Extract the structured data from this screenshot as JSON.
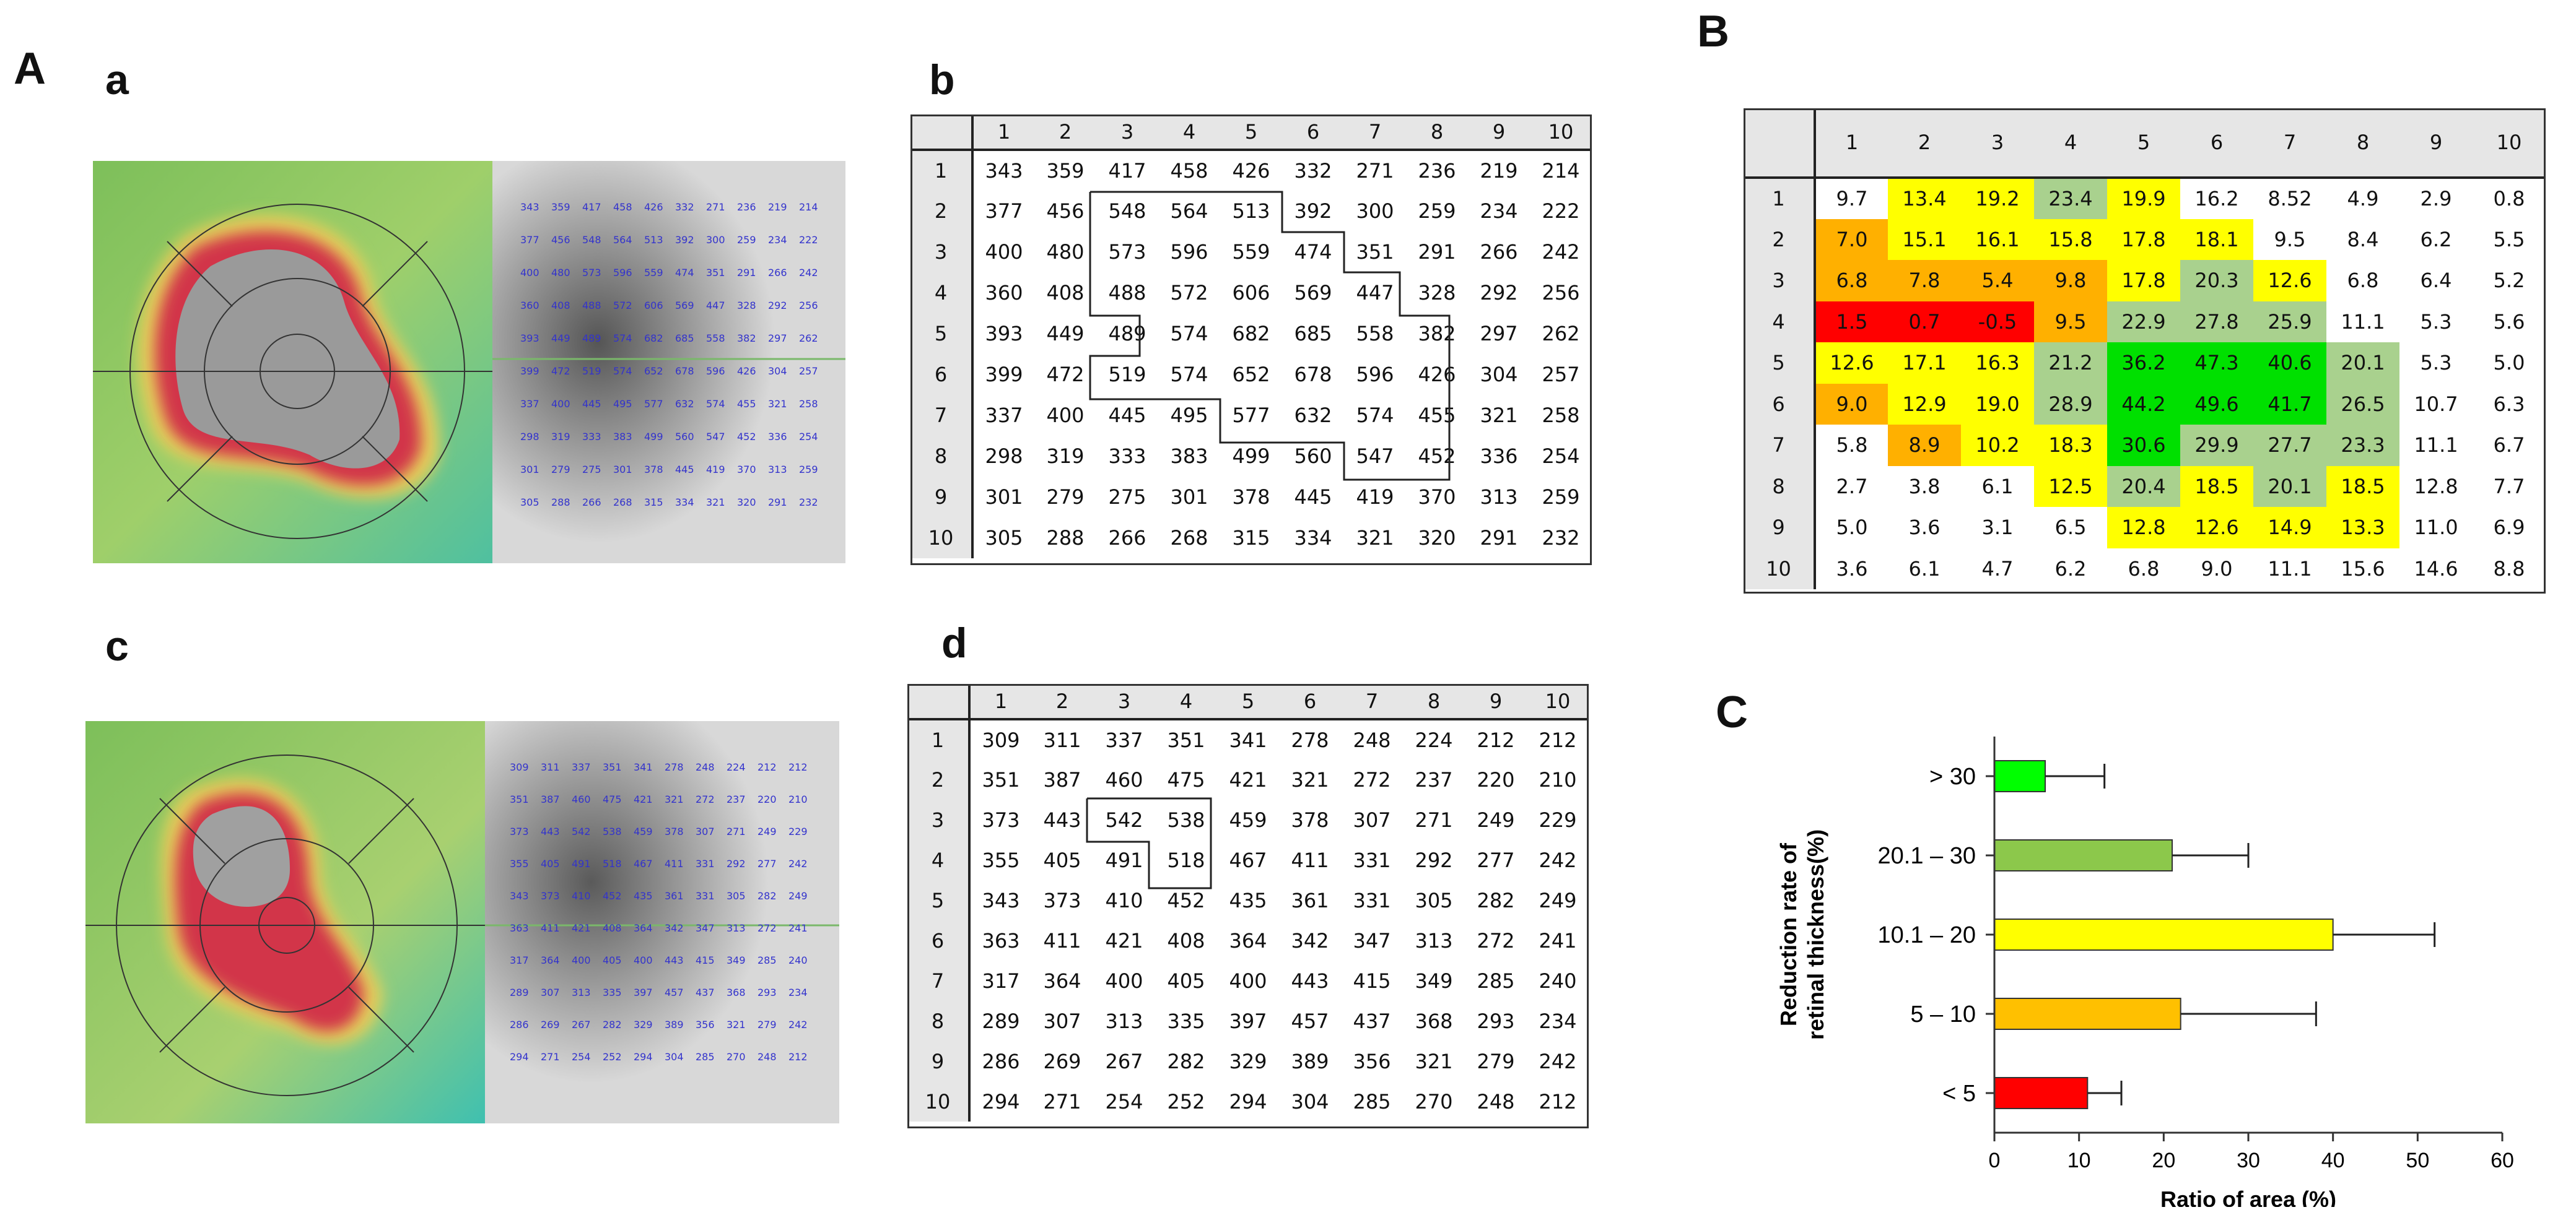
{
  "labels": {
    "A": "A",
    "B": "B",
    "C": "C",
    "a": "a",
    "b": "b",
    "c": "c",
    "d": "d"
  },
  "colors": {
    "red": "#ff0000",
    "orange": "#ffb000",
    "yellow": "#ffff00",
    "olive": "#a9d18e",
    "green": "#00e000",
    "white": "#ffffff",
    "header": "#e6e6e6"
  },
  "grid_overlay_a": [
    [
      343,
      359,
      417,
      458,
      426,
      332,
      271,
      236,
      219,
      214
    ],
    [
      377,
      456,
      548,
      564,
      513,
      392,
      300,
      259,
      234,
      222
    ],
    [
      400,
      480,
      573,
      596,
      559,
      474,
      351,
      291,
      266,
      242
    ],
    [
      360,
      408,
      488,
      572,
      606,
      569,
      447,
      328,
      292,
      256
    ],
    [
      393,
      449,
      489,
      574,
      682,
      685,
      558,
      382,
      297,
      262
    ],
    [
      399,
      472,
      519,
      574,
      652,
      678,
      596,
      426,
      304,
      257
    ],
    [
      337,
      400,
      445,
      495,
      577,
      632,
      574,
      455,
      321,
      258
    ],
    [
      298,
      319,
      333,
      383,
      499,
      560,
      547,
      452,
      336,
      254
    ],
    [
      301,
      279,
      275,
      301,
      378,
      445,
      419,
      370,
      313,
      259
    ],
    [
      305,
      288,
      266,
      268,
      315,
      334,
      321,
      320,
      291,
      232
    ]
  ],
  "grid_overlay_c": [
    [
      309,
      311,
      337,
      351,
      341,
      278,
      248,
      224,
      212,
      212
    ],
    [
      351,
      387,
      460,
      475,
      421,
      321,
      272,
      237,
      220,
      210
    ],
    [
      373,
      443,
      542,
      538,
      459,
      378,
      307,
      271,
      249,
      229
    ],
    [
      355,
      405,
      491,
      518,
      467,
      411,
      331,
      292,
      277,
      242
    ],
    [
      343,
      373,
      410,
      452,
      435,
      361,
      331,
      305,
      282,
      249
    ],
    [
      363,
      411,
      421,
      408,
      364,
      342,
      347,
      313,
      272,
      241
    ],
    [
      317,
      364,
      400,
      405,
      400,
      443,
      415,
      349,
      285,
      240
    ],
    [
      289,
      307,
      313,
      335,
      397,
      457,
      437,
      368,
      293,
      234
    ],
    [
      286,
      269,
      267,
      282,
      329,
      389,
      356,
      321,
      279,
      242
    ],
    [
      294,
      271,
      254,
      252,
      294,
      304,
      285,
      270,
      248,
      212
    ]
  ],
  "table_b": {
    "columns": [
      "1",
      "2",
      "3",
      "4",
      "5",
      "6",
      "7",
      "8",
      "9",
      "10"
    ],
    "rows": [
      {
        "label": "1",
        "cells": [
          "343",
          "359",
          "417",
          "458",
          "426",
          "332",
          "271",
          "236",
          "219",
          "214"
        ]
      },
      {
        "label": "2",
        "cells": [
          "377",
          "456",
          "548",
          "564",
          "513",
          "392",
          "300",
          "259",
          "234",
          "222"
        ]
      },
      {
        "label": "3",
        "cells": [
          "400",
          "480",
          "573",
          "596",
          "559",
          "474",
          "351",
          "291",
          "266",
          "242"
        ]
      },
      {
        "label": "4",
        "cells": [
          "360",
          "408",
          "488",
          "572",
          "606",
          "569",
          "447",
          "328",
          "292",
          "256"
        ]
      },
      {
        "label": "5",
        "cells": [
          "393",
          "449",
          "489",
          "574",
          "682",
          "685",
          "558",
          "382",
          "297",
          "262"
        ]
      },
      {
        "label": "6",
        "cells": [
          "399",
          "472",
          "519",
          "574",
          "652",
          "678",
          "596",
          "426",
          "304",
          "257"
        ]
      },
      {
        "label": "7",
        "cells": [
          "337",
          "400",
          "445",
          "495",
          "577",
          "632",
          "574",
          "455",
          "321",
          "258"
        ]
      },
      {
        "label": "8",
        "cells": [
          "298",
          "319",
          "333",
          "383",
          "499",
          "560",
          "547",
          "452",
          "336",
          "254"
        ]
      },
      {
        "label": "9",
        "cells": [
          "301",
          "279",
          "275",
          "301",
          "378",
          "445",
          "419",
          "370",
          "313",
          "259"
        ]
      },
      {
        "label": "10",
        "cells": [
          "305",
          "288",
          "266",
          "268",
          "315",
          "334",
          "321",
          "320",
          "291",
          "232"
        ]
      }
    ]
  },
  "table_d": {
    "columns": [
      "1",
      "2",
      "3",
      "4",
      "5",
      "6",
      "7",
      "8",
      "9",
      "10"
    ],
    "rows": [
      {
        "label": "1",
        "cells": [
          "309",
          "311",
          "337",
          "351",
          "341",
          "278",
          "248",
          "224",
          "212",
          "212"
        ]
      },
      {
        "label": "2",
        "cells": [
          "351",
          "387",
          "460",
          "475",
          "421",
          "321",
          "272",
          "237",
          "220",
          "210"
        ]
      },
      {
        "label": "3",
        "cells": [
          "373",
          "443",
          "542",
          "538",
          "459",
          "378",
          "307",
          "271",
          "249",
          "229"
        ]
      },
      {
        "label": "4",
        "cells": [
          "355",
          "405",
          "491",
          "518",
          "467",
          "411",
          "331",
          "292",
          "277",
          "242"
        ]
      },
      {
        "label": "5",
        "cells": [
          "343",
          "373",
          "410",
          "452",
          "435",
          "361",
          "331",
          "305",
          "282",
          "249"
        ]
      },
      {
        "label": "6",
        "cells": [
          "363",
          "411",
          "421",
          "408",
          "364",
          "342",
          "347",
          "313",
          "272",
          "241"
        ]
      },
      {
        "label": "7",
        "cells": [
          "317",
          "364",
          "400",
          "405",
          "400",
          "443",
          "415",
          "349",
          "285",
          "240"
        ]
      },
      {
        "label": "8",
        "cells": [
          "289",
          "307",
          "313",
          "335",
          "397",
          "457",
          "437",
          "368",
          "293",
          "234"
        ]
      },
      {
        "label": "9",
        "cells": [
          "286",
          "269",
          "267",
          "282",
          "329",
          "389",
          "356",
          "321",
          "279",
          "242"
        ]
      },
      {
        "label": "10",
        "cells": [
          "294",
          "271",
          "254",
          "252",
          "294",
          "304",
          "285",
          "270",
          "248",
          "212"
        ]
      }
    ]
  },
  "table_B": {
    "columns": [
      "1",
      "2",
      "3",
      "4",
      "5",
      "6",
      "7",
      "8",
      "9",
      "10"
    ],
    "rows": [
      {
        "label": "1",
        "cells": [
          "9.7",
          "13.4",
          "19.2",
          "23.4",
          "19.9",
          "16.2",
          "8.52",
          "4.9",
          "2.9",
          "0.8"
        ],
        "colors": [
          "white",
          "yellow",
          "yellow",
          "olive",
          "yellow",
          "white",
          "white",
          "white",
          "white",
          "white"
        ]
      },
      {
        "label": "2",
        "cells": [
          "7.0",
          "15.1",
          "16.1",
          "15.8",
          "17.8",
          "18.1",
          "9.5",
          "8.4",
          "6.2",
          "5.5"
        ],
        "colors": [
          "orange",
          "yellow",
          "yellow",
          "yellow",
          "yellow",
          "yellow",
          "white",
          "white",
          "white",
          "white"
        ]
      },
      {
        "label": "3",
        "cells": [
          "6.8",
          "7.8",
          "5.4",
          "9.8",
          "17.8",
          "20.3",
          "12.6",
          "6.8",
          "6.4",
          "5.2"
        ],
        "colors": [
          "orange",
          "orange",
          "orange",
          "orange",
          "yellow",
          "olive",
          "yellow",
          "white",
          "white",
          "white"
        ]
      },
      {
        "label": "4",
        "cells": [
          "1.5",
          "0.7",
          "-0.5",
          "9.5",
          "22.9",
          "27.8",
          "25.9",
          "11.1",
          "5.3",
          "5.6"
        ],
        "colors": [
          "red",
          "red",
          "red",
          "orange",
          "olive",
          "olive",
          "olive",
          "white",
          "white",
          "white"
        ]
      },
      {
        "label": "5",
        "cells": [
          "12.6",
          "17.1",
          "16.3",
          "21.2",
          "36.2",
          "47.3",
          "40.6",
          "20.1",
          "5.3",
          "5.0"
        ],
        "colors": [
          "yellow",
          "yellow",
          "yellow",
          "olive",
          "green",
          "green",
          "green",
          "olive",
          "white",
          "white"
        ]
      },
      {
        "label": "6",
        "cells": [
          "9.0",
          "12.9",
          "19.0",
          "28.9",
          "44.2",
          "49.6",
          "41.7",
          "26.5",
          "10.7",
          "6.3"
        ],
        "colors": [
          "orange",
          "yellow",
          "yellow",
          "olive",
          "green",
          "green",
          "green",
          "olive",
          "white",
          "white"
        ]
      },
      {
        "label": "7",
        "cells": [
          "5.8",
          "8.9",
          "10.2",
          "18.3",
          "30.6",
          "29.9",
          "27.7",
          "23.3",
          "11.1",
          "6.7"
        ],
        "colors": [
          "white",
          "orange",
          "yellow",
          "yellow",
          "green",
          "olive",
          "olive",
          "olive",
          "white",
          "white"
        ]
      },
      {
        "label": "8",
        "cells": [
          "2.7",
          "3.8",
          "6.1",
          "12.5",
          "20.4",
          "18.5",
          "20.1",
          "18.5",
          "12.8",
          "7.7"
        ],
        "colors": [
          "white",
          "white",
          "white",
          "yellow",
          "olive",
          "yellow",
          "olive",
          "yellow",
          "white",
          "white"
        ]
      },
      {
        "label": "9",
        "cells": [
          "5.0",
          "3.6",
          "3.1",
          "6.5",
          "12.8",
          "12.6",
          "14.9",
          "13.3",
          "11.0",
          "6.9"
        ],
        "colors": [
          "white",
          "white",
          "white",
          "white",
          "yellow",
          "yellow",
          "yellow",
          "yellow",
          "white",
          "white"
        ]
      },
      {
        "label": "10",
        "cells": [
          "3.6",
          "6.1",
          "4.7",
          "6.2",
          "6.8",
          "9.0",
          "11.1",
          "15.6",
          "14.6",
          "8.8"
        ],
        "colors": [
          "white",
          "white",
          "white",
          "white",
          "white",
          "white",
          "white",
          "white",
          "white",
          "white"
        ]
      }
    ]
  },
  "chart_data": {
    "type": "bar",
    "orientation": "horizontal",
    "title": "",
    "xlabel": "Ratio of area (%)",
    "ylabel": "Reduction rate of retinal thickness (%)",
    "ylabel_lines": [
      "Reduction rate of",
      "retinal thickness(%)"
    ],
    "categories": [
      "> 30",
      "20.1 – 30",
      "10.1 – 20",
      "5 – 10",
      "< 5"
    ],
    "values": [
      6,
      21,
      40,
      22,
      11
    ],
    "errors": [
      7,
      9,
      12,
      16,
      4
    ],
    "colors": [
      "#00ff00",
      "#8cc84b",
      "#ffff00",
      "#ffc000",
      "#ff0000"
    ],
    "xlim": [
      0,
      60
    ],
    "xticks": [
      "0",
      "10",
      "20",
      "30",
      "40",
      "50",
      "60"
    ]
  }
}
